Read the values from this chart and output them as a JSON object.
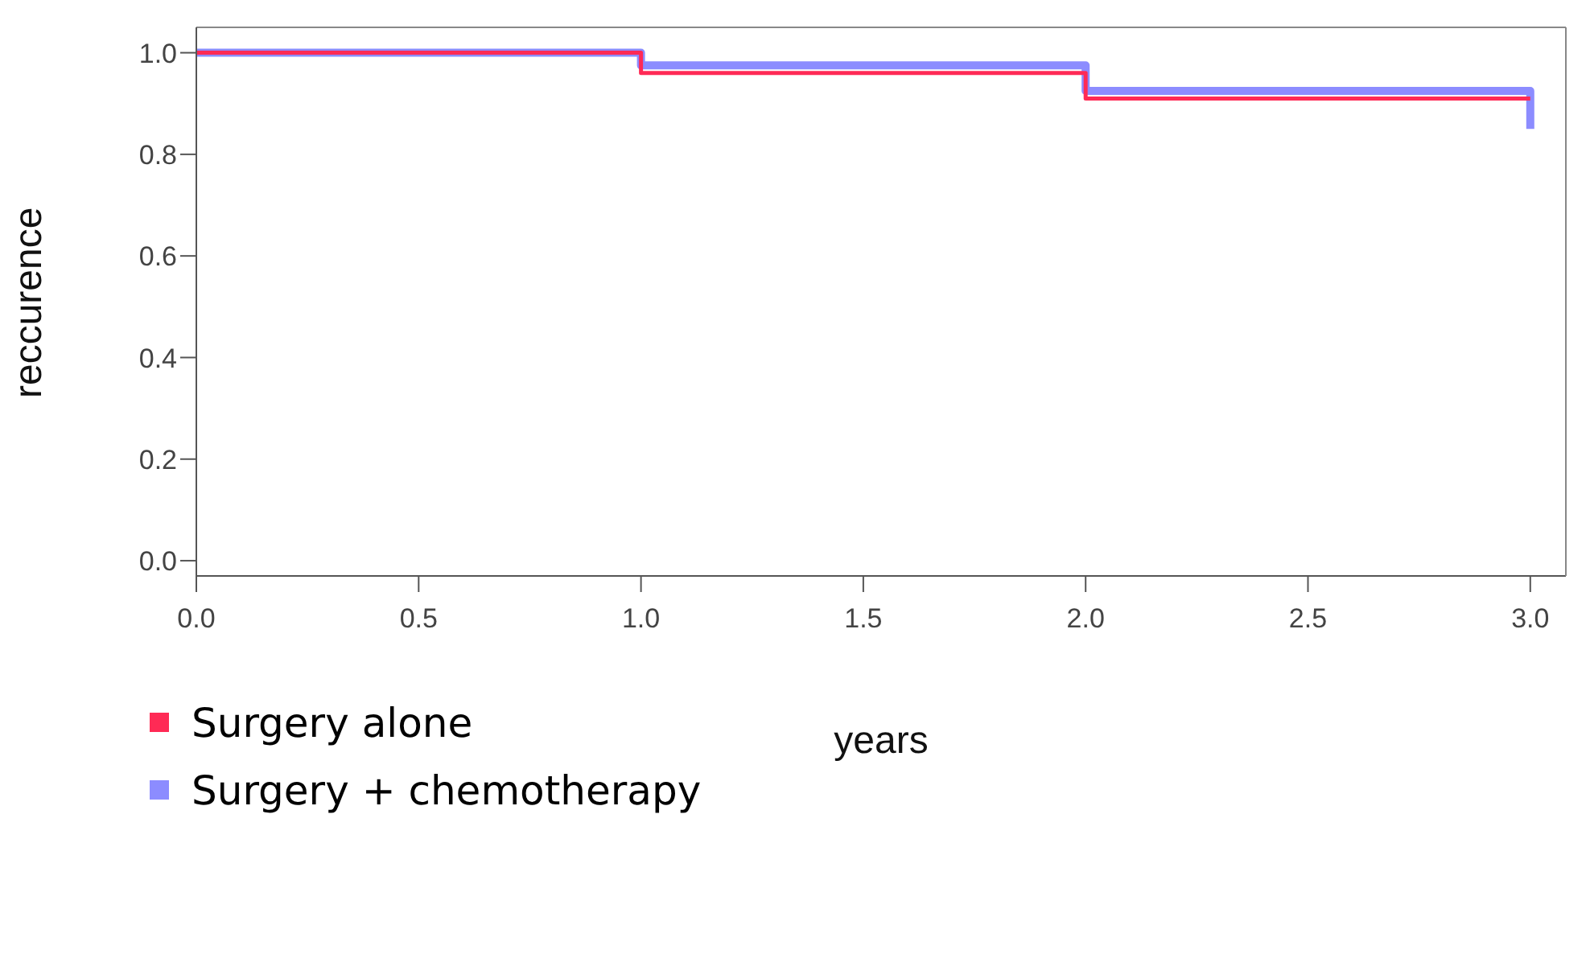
{
  "chart_data": {
    "type": "step",
    "xlabel": "years",
    "ylabel": "reccurence",
    "x": [
      0,
      1,
      2,
      3
    ],
    "series": [
      {
        "name": "Surgery alone",
        "color": "#ff2a55",
        "values": [
          1.0,
          0.96,
          0.91,
          0.91
        ]
      },
      {
        "name": "Surgery + chemotherapy",
        "color": "#8c8cff",
        "values": [
          1.0,
          0.975,
          0.925,
          0.85
        ]
      }
    ],
    "xlim": [
      0,
      3.08
    ],
    "ylim": [
      -0.03,
      1.05
    ],
    "xticks": [
      {
        "value": 0,
        "label": "0.0"
      },
      0.5,
      {
        "value": 1,
        "label": "1.0"
      },
      1.5,
      {
        "value": 2,
        "label": "2.0"
      },
      2.5,
      {
        "value": 3,
        "label": "3.0"
      }
    ],
    "yticks": [
      {
        "value": 0,
        "label": "0.0"
      },
      0.2,
      0.4,
      0.6,
      0.8,
      {
        "value": 1,
        "label": "1.0"
      }
    ],
    "legend": "bottom",
    "marker": "none",
    "line_style": "solid"
  }
}
